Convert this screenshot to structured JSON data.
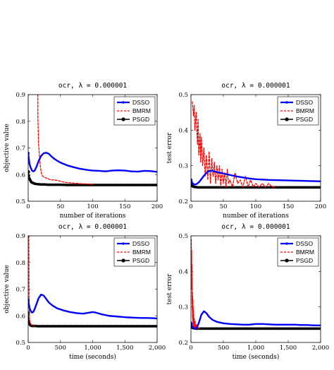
{
  "chart_data": [
    {
      "type": "line",
      "title": "ocr, λ = 0.000001",
      "xlabel": "number of iterations",
      "ylabel": "objective value",
      "xlim": [
        0,
        200
      ],
      "ylim": [
        0.5,
        0.9
      ],
      "xticks": [
        0,
        50,
        100,
        150,
        200
      ],
      "yticks": [
        0.5,
        0.6,
        0.7,
        0.8,
        0.9
      ],
      "legend_position": "top-right",
      "series": [
        {
          "name": "DSSO",
          "color": "#0000ff",
          "style": "solid-thick",
          "x": [
            0,
            2,
            4,
            6,
            8,
            10,
            13,
            16,
            20,
            24,
            28,
            32,
            36,
            40,
            45,
            50,
            60,
            70,
            80,
            90,
            100,
            110,
            120,
            130,
            140,
            150,
            160,
            170,
            180,
            190,
            200
          ],
          "y": [
            0.68,
            0.64,
            0.625,
            0.615,
            0.612,
            0.615,
            0.63,
            0.65,
            0.67,
            0.68,
            0.682,
            0.678,
            0.668,
            0.66,
            0.652,
            0.645,
            0.635,
            0.628,
            0.622,
            0.618,
            0.615,
            0.614,
            0.612,
            0.615,
            0.616,
            0.615,
            0.612,
            0.611,
            0.614,
            0.613,
            0.61
          ]
        },
        {
          "name": "BMRM",
          "color": "#ff0000",
          "style": "dashed",
          "x": [
            15,
            15,
            16,
            18,
            20,
            22,
            25,
            30,
            35,
            40,
            45,
            50,
            55,
            60,
            70,
            80,
            90,
            100
          ],
          "y": [
            0.9,
            0.82,
            0.72,
            0.65,
            0.61,
            0.595,
            0.59,
            0.585,
            0.58,
            0.58,
            0.578,
            0.575,
            0.572,
            0.57,
            0.568,
            0.566,
            0.565,
            0.564
          ]
        },
        {
          "name": "PSGD",
          "color": "#000000",
          "style": "solid-dots",
          "x": [
            0,
            1,
            2,
            3,
            4,
            5,
            6,
            8,
            10,
            12,
            15,
            20,
            25,
            30,
            40,
            50,
            60,
            80,
            100,
            120,
            140,
            160,
            180,
            200
          ],
          "y": [
            0.61,
            0.595,
            0.585,
            0.58,
            0.575,
            0.572,
            0.57,
            0.568,
            0.566,
            0.565,
            0.564,
            0.563,
            0.563,
            0.562,
            0.562,
            0.562,
            0.561,
            0.561,
            0.561,
            0.561,
            0.561,
            0.561,
            0.561,
            0.561
          ]
        }
      ]
    },
    {
      "type": "line",
      "title": "ocr, λ = 0.000001",
      "xlabel": "number of iterations",
      "ylabel": "test error",
      "xlim": [
        0,
        200
      ],
      "ylim": [
        0.2,
        0.5
      ],
      "xticks": [
        0,
        50,
        100,
        150,
        200
      ],
      "yticks": [
        0.2,
        0.3,
        0.4,
        0.5
      ],
      "legend_position": "top-right",
      "series": [
        {
          "name": "DSSO",
          "color": "#0000ff",
          "style": "solid-thick",
          "x": [
            0,
            2,
            4,
            6,
            8,
            10,
            13,
            16,
            20,
            24,
            28,
            32,
            36,
            40,
            50,
            60,
            70,
            80,
            90,
            100,
            120,
            140,
            160,
            180,
            200
          ],
          "y": [
            0.26,
            0.252,
            0.248,
            0.247,
            0.248,
            0.25,
            0.255,
            0.262,
            0.272,
            0.28,
            0.285,
            0.286,
            0.284,
            0.282,
            0.278,
            0.274,
            0.27,
            0.267,
            0.264,
            0.262,
            0.26,
            0.259,
            0.258,
            0.257,
            0.256
          ]
        },
        {
          "name": "BMRM",
          "color": "#ff0000",
          "style": "dashed",
          "x": [
            2,
            4,
            5,
            6,
            8,
            10,
            11,
            12,
            14,
            15,
            16,
            18,
            20,
            22,
            24,
            26,
            28,
            30,
            32,
            34,
            36,
            38,
            40,
            42,
            44,
            46,
            48,
            50,
            52,
            54,
            56,
            58,
            60,
            64,
            68,
            72,
            76,
            80,
            84,
            88,
            92,
            96,
            100,
            105,
            110,
            115,
            120,
            125,
            130
          ],
          "y": [
            0.48,
            0.44,
            0.47,
            0.4,
            0.45,
            0.36,
            0.43,
            0.33,
            0.39,
            0.31,
            0.38,
            0.3,
            0.35,
            0.27,
            0.33,
            0.26,
            0.34,
            0.25,
            0.32,
            0.27,
            0.31,
            0.25,
            0.3,
            0.26,
            0.3,
            0.24,
            0.29,
            0.25,
            0.28,
            0.24,
            0.29,
            0.25,
            0.26,
            0.24,
            0.28,
            0.25,
            0.26,
            0.24,
            0.27,
            0.24,
            0.26,
            0.24,
            0.25,
            0.24,
            0.25,
            0.24,
            0.25,
            0.24,
            0.24
          ]
        },
        {
          "name": "PSGD",
          "color": "#000000",
          "style": "solid-dots",
          "x": [
            0,
            1,
            2,
            3,
            4,
            6,
            8,
            10,
            15,
            20,
            30,
            40,
            60,
            80,
            100,
            120,
            140,
            160,
            180,
            200
          ],
          "y": [
            0.25,
            0.245,
            0.243,
            0.242,
            0.241,
            0.24,
            0.24,
            0.239,
            0.239,
            0.239,
            0.239,
            0.239,
            0.239,
            0.239,
            0.239,
            0.239,
            0.239,
            0.239,
            0.239,
            0.239
          ]
        }
      ]
    },
    {
      "type": "line",
      "title": "ocr, λ = 0.000001",
      "xlabel": "time (seconds)",
      "ylabel": "objective value",
      "xlim": [
        0,
        2000
      ],
      "ylim": [
        0.5,
        0.9
      ],
      "xticks": [
        0,
        500,
        1000,
        1500,
        2000
      ],
      "xtick_labels": [
        "0",
        "500",
        "1,000",
        "1,500",
        "2,000"
      ],
      "yticks": [
        0.5,
        0.6,
        0.7,
        0.8,
        0.9
      ],
      "legend_position": "top-right",
      "series": [
        {
          "name": "DSSO",
          "color": "#0000ff",
          "style": "solid-thick",
          "x": [
            0,
            20,
            40,
            60,
            80,
            100,
            130,
            160,
            200,
            240,
            280,
            320,
            380,
            450,
            550,
            650,
            750,
            850,
            950,
            1000,
            1050,
            1150,
            1250,
            1350,
            1450,
            1550,
            1650,
            1750,
            1850,
            1950,
            2000
          ],
          "y": [
            0.66,
            0.63,
            0.618,
            0.612,
            0.615,
            0.625,
            0.645,
            0.665,
            0.68,
            0.676,
            0.663,
            0.65,
            0.638,
            0.628,
            0.62,
            0.614,
            0.61,
            0.608,
            0.612,
            0.614,
            0.612,
            0.605,
            0.6,
            0.598,
            0.596,
            0.594,
            0.593,
            0.592,
            0.592,
            0.591,
            0.59
          ]
        },
        {
          "name": "BMRM",
          "color": "#ff0000",
          "style": "dashed",
          "x": [
            10,
            12,
            14,
            16,
            18,
            20,
            25,
            30,
            40,
            50,
            60,
            80,
            100
          ],
          "y": [
            0.9,
            0.75,
            0.66,
            0.62,
            0.6,
            0.59,
            0.58,
            0.575,
            0.57,
            0.566,
            0.564,
            0.563,
            0.562
          ]
        },
        {
          "name": "PSGD",
          "color": "#000000",
          "style": "solid-dots",
          "x": [
            0,
            10,
            20,
            30,
            40,
            50,
            60,
            80,
            100,
            150,
            200,
            300,
            400,
            600,
            800,
            1000,
            1200,
            1400,
            1600,
            1800,
            2000
          ],
          "y": [
            0.61,
            0.58,
            0.57,
            0.566,
            0.564,
            0.563,
            0.562,
            0.562,
            0.562,
            0.561,
            0.561,
            0.561,
            0.561,
            0.561,
            0.561,
            0.561,
            0.561,
            0.561,
            0.561,
            0.561,
            0.561
          ]
        }
      ]
    },
    {
      "type": "line",
      "title": "ocr, λ = 0.000001",
      "xlabel": "time (seconds)",
      "ylabel": "test error",
      "xlim": [
        0,
        2000
      ],
      "ylim": [
        0.2,
        0.5
      ],
      "xticks": [
        0,
        500,
        1000,
        1500,
        2000
      ],
      "xtick_labels": [
        "0",
        "500",
        "1,000",
        "1,500",
        "2,000"
      ],
      "yticks": [
        0.2,
        0.3,
        0.4,
        0.5
      ],
      "legend_position": "top-right",
      "series": [
        {
          "name": "DSSO",
          "color": "#0000ff",
          "style": "solid-thick",
          "x": [
            0,
            20,
            40,
            60,
            80,
            100,
            130,
            160,
            200,
            240,
            280,
            330,
            400,
            500,
            600,
            700,
            800,
            900,
            1000,
            1100,
            1200,
            1300,
            1400,
            1500,
            1600,
            1700,
            1800,
            1900,
            2000
          ],
          "y": [
            0.255,
            0.245,
            0.24,
            0.238,
            0.24,
            0.245,
            0.26,
            0.278,
            0.288,
            0.282,
            0.272,
            0.264,
            0.258,
            0.254,
            0.252,
            0.251,
            0.25,
            0.25,
            0.252,
            0.252,
            0.251,
            0.25,
            0.25,
            0.25,
            0.25,
            0.249,
            0.249,
            0.248,
            0.248
          ]
        },
        {
          "name": "BMRM",
          "color": "#ff0000",
          "style": "dashed",
          "x": [
            5,
            8,
            10,
            12,
            14,
            16,
            18,
            20,
            22,
            24,
            26,
            28,
            30,
            32,
            34,
            36,
            38,
            40,
            42,
            44,
            46,
            48,
            50,
            54,
            58,
            62,
            66,
            70,
            75,
            80,
            85,
            90,
            95,
            100,
            110,
            120,
            130
          ],
          "y": [
            0.49,
            0.4,
            0.46,
            0.35,
            0.42,
            0.31,
            0.38,
            0.29,
            0.34,
            0.27,
            0.33,
            0.26,
            0.32,
            0.25,
            0.3,
            0.26,
            0.29,
            0.24,
            0.28,
            0.25,
            0.27,
            0.24,
            0.27,
            0.25,
            0.26,
            0.24,
            0.26,
            0.24,
            0.25,
            0.24,
            0.25,
            0.24,
            0.25,
            0.24,
            0.24,
            0.24,
            0.24
          ]
        },
        {
          "name": "PSGD",
          "color": "#000000",
          "style": "solid-dots",
          "x": [
            0,
            10,
            20,
            30,
            40,
            60,
            80,
            100,
            150,
            200,
            300,
            400,
            600,
            800,
            1000,
            1200,
            1400,
            1600,
            1800,
            2000
          ],
          "y": [
            0.25,
            0.244,
            0.242,
            0.241,
            0.24,
            0.24,
            0.239,
            0.239,
            0.239,
            0.239,
            0.239,
            0.239,
            0.239,
            0.239,
            0.239,
            0.239,
            0.239,
            0.239,
            0.239,
            0.239
          ]
        }
      ]
    }
  ]
}
